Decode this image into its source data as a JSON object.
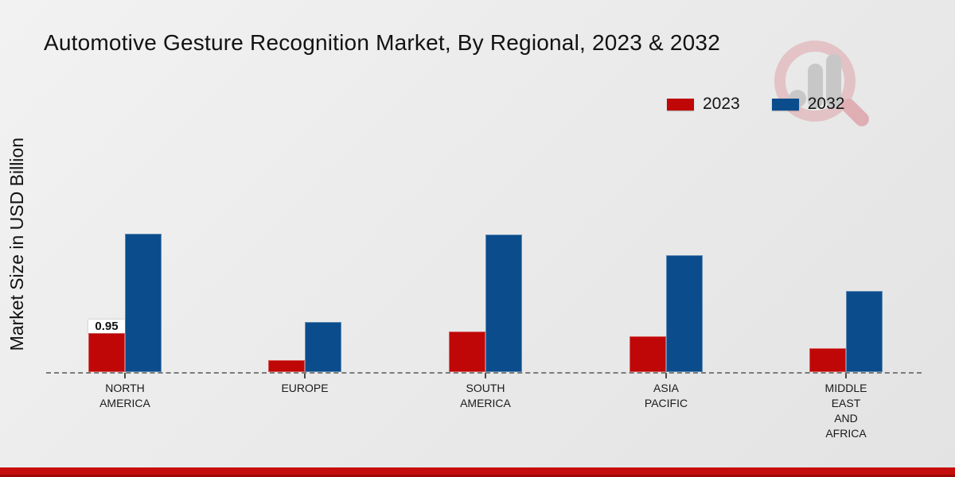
{
  "title": "Automotive Gesture Recognition Market, By Regional, 2023 & 2032",
  "y_axis_label": "Market Size in USD Billion",
  "legend": {
    "items": [
      {
        "label": "2023",
        "color": "#c00707"
      },
      {
        "label": "2032",
        "color": "#0b4d8c"
      }
    ]
  },
  "watermark_icon": "magnifier-bar-chart-logo",
  "colors": {
    "series_2023": "#c00707",
    "series_2032": "#0b4d8c",
    "footer_bar": "#c50d0d",
    "baseline": "#7b7b7b",
    "background": "#ebebeb"
  },
  "chart_data": {
    "type": "bar",
    "categories": [
      "NORTH AMERICA",
      "EUROPE",
      "SOUTH AMERICA",
      "ASIA PACIFIC",
      "MIDDLE EAST AND AFRICA"
    ],
    "category_lines": [
      [
        "NORTH",
        "AMERICA"
      ],
      [
        "EUROPE"
      ],
      [
        "SOUTH",
        "AMERICA"
      ],
      [
        "ASIA",
        "PACIFIC"
      ],
      [
        "MIDDLE",
        "EAST",
        "AND",
        "AFRICA"
      ]
    ],
    "series": [
      {
        "name": "2023",
        "color": "#c00707",
        "values": [
          0.95,
          0.29,
          0.98,
          0.87,
          0.58
        ]
      },
      {
        "name": "2032",
        "color": "#0b4d8c",
        "values": [
          3.37,
          1.22,
          3.35,
          2.85,
          1.98
        ]
      }
    ],
    "value_labels": [
      {
        "series_index": 0,
        "category_index": 0,
        "text": "0.95"
      }
    ],
    "title": "Automotive Gesture Recognition Market, By Regional, 2023 & 2032",
    "xlabel": "",
    "ylabel": "Market Size in USD Billion",
    "ylim": [
      0,
      4
    ],
    "grid": false,
    "legend_position": "top-right",
    "baseline_style": "dashed"
  }
}
